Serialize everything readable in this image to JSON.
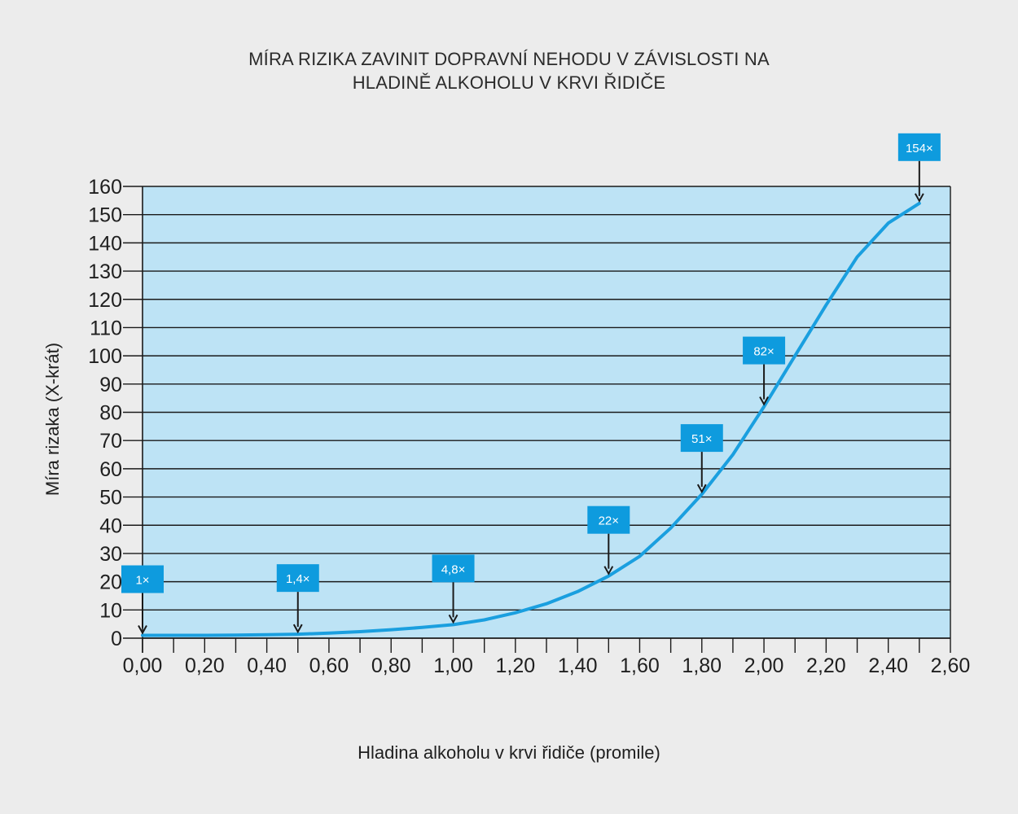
{
  "chart_data": {
    "type": "line",
    "title_lines": [
      "MÍRA RIZIKA ZAVINIT DOPRAVNÍ NEHODU V ZÁVISLOSTI NA",
      "HLADINĚ ALKOHOLU V KRVI ŘIDIČE"
    ],
    "xlabel": "Hladina alkoholu v krvi řidiče (promile)",
    "ylabel": "Míra rizaka (X-krát)",
    "xlim": [
      0,
      2.6
    ],
    "ylim": [
      0,
      160
    ],
    "x_ticks": [
      "0,00",
      "0,20",
      "0,40",
      "0,60",
      "0,80",
      "1,00",
      "1,20",
      "1,40",
      "1,60",
      "1,80",
      "2,00",
      "2,20",
      "2,40",
      "2,60"
    ],
    "x_tick_values": [
      0,
      0.2,
      0.4,
      0.6,
      0.8,
      1.0,
      1.2,
      1.4,
      1.6,
      1.8,
      2.0,
      2.2,
      2.4,
      2.6
    ],
    "x_minor_step": 0.1,
    "y_ticks": [
      0,
      10,
      20,
      30,
      40,
      50,
      60,
      70,
      80,
      90,
      100,
      110,
      120,
      130,
      140,
      150,
      160
    ],
    "grid": true,
    "series": [
      {
        "x": [
          0,
          0.1,
          0.2,
          0.3,
          0.4,
          0.5,
          0.6,
          0.7,
          0.8,
          0.9,
          1.0,
          1.1,
          1.2,
          1.3,
          1.4,
          1.5,
          1.6,
          1.7,
          1.8,
          1.9,
          2.0,
          2.1,
          2.2,
          2.3,
          2.4,
          2.5
        ],
        "y": [
          1,
          1,
          1,
          1.1,
          1.2,
          1.4,
          1.8,
          2.3,
          3,
          3.8,
          4.8,
          6.5,
          9,
          12.2,
          16.5,
          22,
          29,
          39,
          51,
          65,
          82,
          100,
          118,
          135,
          147,
          154
        ]
      }
    ],
    "annotations": [
      {
        "x": 0.0,
        "y": 1,
        "label": "1×"
      },
      {
        "x": 0.5,
        "y": 1.4,
        "label": "1,4×"
      },
      {
        "x": 1.0,
        "y": 4.8,
        "label": "4,8×"
      },
      {
        "x": 1.5,
        "y": 22,
        "label": "22×"
      },
      {
        "x": 1.8,
        "y": 51,
        "label": "51×"
      },
      {
        "x": 2.0,
        "y": 82,
        "label": "82×"
      },
      {
        "x": 2.5,
        "y": 154,
        "label": "154×"
      }
    ],
    "colors": {
      "background": "#ececec",
      "plot_area": "#bde3f5",
      "line": "#1a9fdf",
      "label_box": "#0e9bde",
      "grid": "#1a1a1a",
      "text": "#1f1f1f"
    }
  }
}
